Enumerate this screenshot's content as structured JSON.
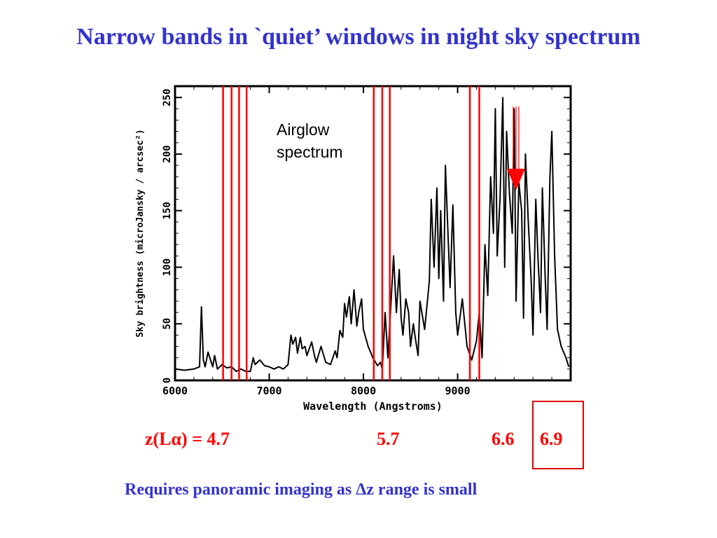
{
  "slide": {
    "title": "Narrow bands in `quiet’ windows in night sky spectrum",
    "footer": "Requires panoramic imaging as Δz range is small",
    "annotation_line1": "Airglow",
    "annotation_line2": "spectrum",
    "z_labels": [
      "z(Lα) = 4.7",
      "5.7",
      "6.6",
      "6.9"
    ],
    "colors": {
      "title": "#3333cc",
      "bands": "#ff0000",
      "spectrum": "#000000",
      "box": "#dd0000"
    },
    "arrow_icon": "down-arrow"
  },
  "chart_data": {
    "type": "line",
    "xlabel": "Wavelength (Angstroms)",
    "ylabel": "Sky brightness (microJansky / arcsec²)",
    "xlim": [
      6000,
      10200
    ],
    "ylim": [
      0,
      260
    ],
    "xticks": [
      6000,
      7000,
      8000,
      9000
    ],
    "yticks": [
      0,
      50,
      100,
      150,
      200,
      250
    ],
    "narrow_bands": [
      6510,
      6600,
      6680,
      6760,
      8110,
      8200,
      8280,
      9130,
      9230
    ],
    "series": [
      {
        "x": [
          6000,
          6100,
          6200,
          6260,
          6280,
          6300,
          6320,
          6350,
          6400,
          6420,
          6450,
          6500,
          6550,
          6600,
          6650,
          6700,
          6750,
          6800,
          6830,
          6850,
          6900,
          6950,
          7000,
          7050,
          7100,
          7150,
          7200,
          7230,
          7250,
          7280,
          7300,
          7330,
          7350,
          7380,
          7400,
          7450,
          7480,
          7500,
          7550,
          7600,
          7650,
          7700,
          7720,
          7750,
          7780,
          7800,
          7820,
          7850,
          7870,
          7900,
          7930,
          7950,
          7980,
          8000,
          8050,
          8100,
          8150,
          8180,
          8200,
          8230,
          8260,
          8300,
          8320,
          8350,
          8380,
          8400,
          8420,
          8450,
          8480,
          8500,
          8530,
          8550,
          8580,
          8600,
          8650,
          8700,
          8720,
          8750,
          8780,
          8800,
          8820,
          8850,
          8870,
          8900,
          8920,
          8950,
          8980,
          9000,
          9050,
          9100,
          9150,
          9200,
          9230,
          9260,
          9290,
          9320,
          9350,
          9380,
          9400,
          9420,
          9450,
          9480,
          9500,
          9520,
          9550,
          9580,
          9600,
          9620,
          9650,
          9680,
          9700,
          9720,
          9750,
          9780,
          9800,
          9830,
          9850,
          9880,
          9900,
          9930,
          9950,
          9980,
          10000,
          10030,
          10060,
          10100,
          10150,
          10180
        ],
        "y": [
          10,
          9,
          10,
          12,
          65,
          18,
          12,
          25,
          12,
          22,
          10,
          14,
          11,
          12,
          8,
          10,
          8,
          8,
          20,
          14,
          18,
          13,
          12,
          10,
          12,
          10,
          14,
          40,
          32,
          38,
          24,
          38,
          28,
          30,
          22,
          34,
          22,
          16,
          30,
          16,
          14,
          26,
          20,
          44,
          38,
          68,
          56,
          74,
          50,
          80,
          48,
          60,
          72,
          45,
          30,
          20,
          13,
          16,
          10,
          60,
          20,
          80,
          110,
          60,
          98,
          55,
          40,
          72,
          60,
          30,
          50,
          38,
          22,
          70,
          45,
          88,
          160,
          100,
          170,
          90,
          150,
          70,
          190,
          125,
          82,
          155,
          60,
          40,
          72,
          30,
          18,
          35,
          60,
          20,
          120,
          75,
          180,
          130,
          240,
          110,
          160,
          250,
          100,
          220,
          165,
          130,
          240,
          70,
          175,
          150,
          55,
          200,
          140,
          90,
          40,
          160,
          115,
          60,
          170,
          90,
          45,
          180,
          220,
          110,
          45,
          30,
          20,
          12
        ]
      }
    ]
  }
}
